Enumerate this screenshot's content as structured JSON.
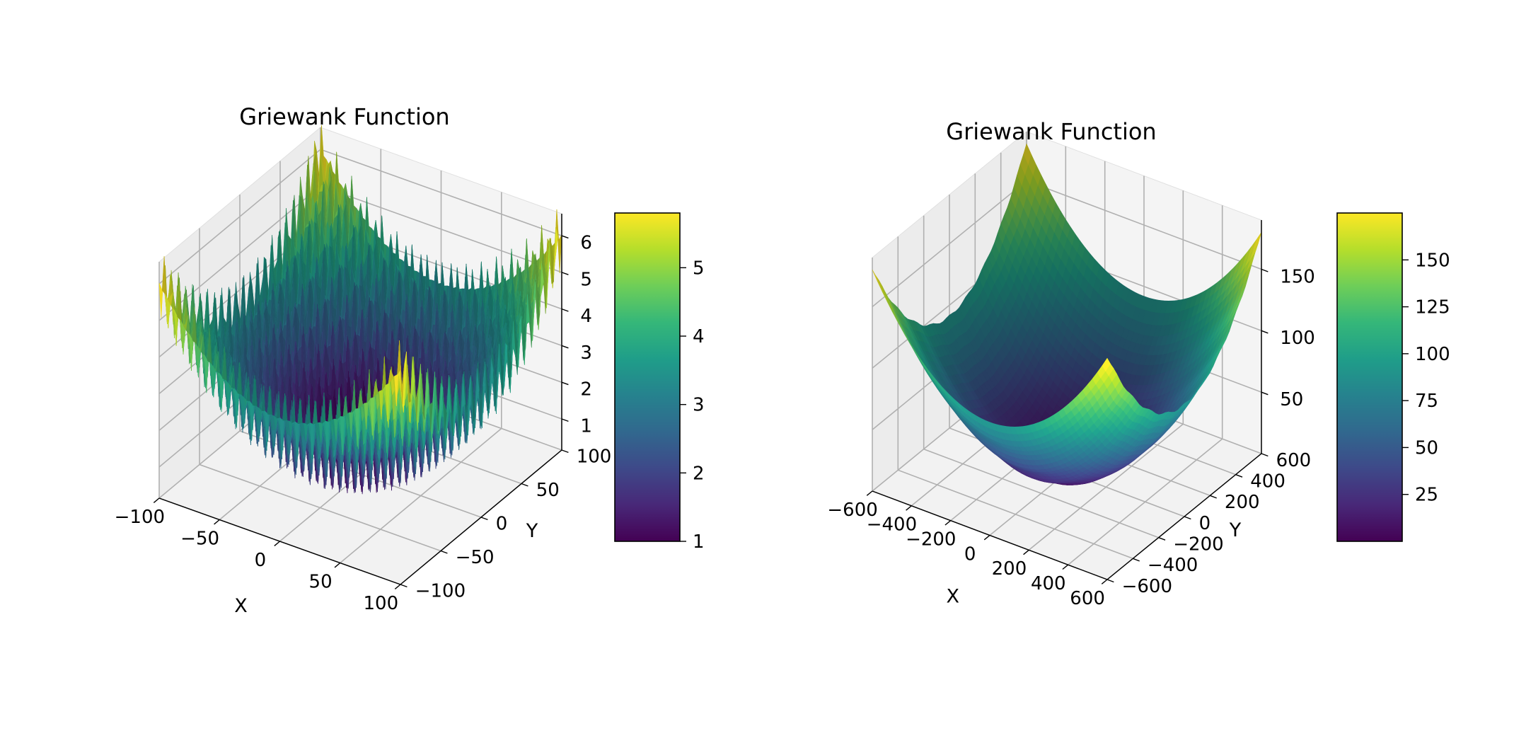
{
  "figure": {
    "background": "#ffffff",
    "colormap": "viridis",
    "colormap_stops": [
      "#440154",
      "#482878",
      "#3e4989",
      "#31688e",
      "#26828e",
      "#1f9e89",
      "#35b779",
      "#6ece58",
      "#b5de2b",
      "#fde725"
    ]
  },
  "chart_data": [
    {
      "type": "surface3d",
      "title": "Griewank Function",
      "function": "z = 1 + (x^2 + y^2)/4000 - cos(x)*cos(y/sqrt(2))",
      "xlabel": "X",
      "ylabel": "Y",
      "zlabel": "",
      "xlim": [
        -100,
        100
      ],
      "ylim": [
        -100,
        100
      ],
      "zlim": [
        0.15,
        6.6
      ],
      "xticks": [
        -100,
        -50,
        0,
        50,
        100
      ],
      "yticks": [
        -100,
        -50,
        0,
        50,
        100
      ],
      "zticks": [
        1,
        2,
        3,
        4,
        5,
        6
      ],
      "colorbar": {
        "min": 1.0,
        "max": 5.8,
        "ticks": [
          1,
          2,
          3,
          4,
          5
        ]
      },
      "grid": true,
      "projection": {
        "azimuth": -60,
        "elevation": 30
      }
    },
    {
      "type": "surface3d",
      "title": "Griewank Function",
      "function": "z = 1 + (x^2 + y^2)/4000 - cos(x)*cos(y/sqrt(2))",
      "xlabel": "X",
      "ylabel": "Y",
      "zlabel": "",
      "xlim": [
        -600,
        600
      ],
      "ylim": [
        -600,
        600
      ],
      "zlim": [
        0,
        190
      ],
      "xticks": [
        -600,
        -400,
        -200,
        0,
        200,
        400,
        600
      ],
      "yticks": [
        -600,
        -400,
        -200,
        0,
        200,
        400,
        600
      ],
      "zticks": [
        50,
        100,
        150
      ],
      "colorbar": {
        "min": 0,
        "max": 175,
        "ticks": [
          25,
          50,
          75,
          100,
          125,
          150
        ]
      },
      "grid": true,
      "projection": {
        "azimuth": -60,
        "elevation": 30
      }
    }
  ]
}
